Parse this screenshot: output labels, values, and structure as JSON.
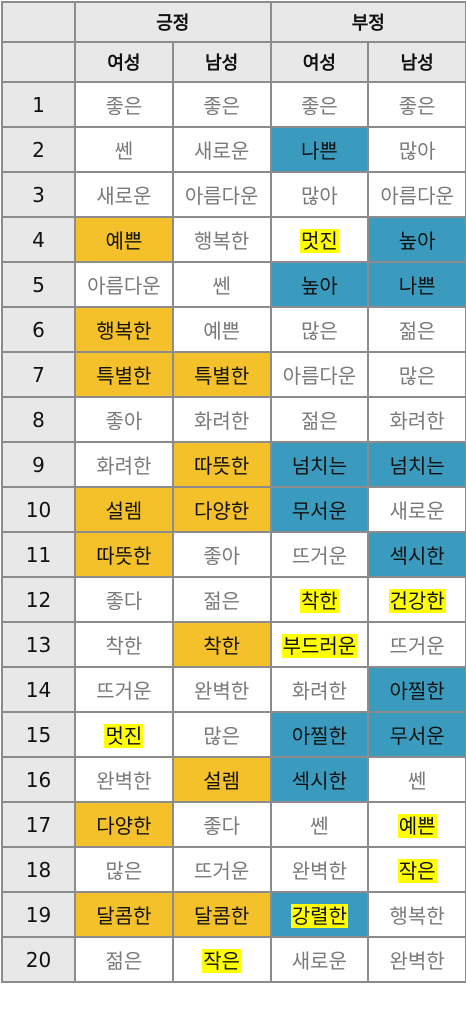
{
  "header": {
    "positive": "긍정",
    "negative": "부정",
    "female": "여성",
    "male": "남성"
  },
  "legend_colors": {
    "orange": "#f4c12a",
    "blue": "#3a9bbf",
    "yellow": "#ffff00"
  },
  "rows": [
    {
      "rank": "1",
      "cells": [
        {
          "text": "좋은",
          "style": ""
        },
        {
          "text": "좋은",
          "style": ""
        },
        {
          "text": "좋은",
          "style": ""
        },
        {
          "text": "좋은",
          "style": ""
        }
      ]
    },
    {
      "rank": "2",
      "cells": [
        {
          "text": "쎈",
          "style": ""
        },
        {
          "text": "새로운",
          "style": ""
        },
        {
          "text": "나쁜",
          "style": "blue"
        },
        {
          "text": "많아",
          "style": ""
        }
      ]
    },
    {
      "rank": "3",
      "cells": [
        {
          "text": "새로운",
          "style": ""
        },
        {
          "text": "아름다운",
          "style": ""
        },
        {
          "text": "많아",
          "style": ""
        },
        {
          "text": "아름다운",
          "style": ""
        }
      ]
    },
    {
      "rank": "4",
      "cells": [
        {
          "text": "예쁜",
          "style": "orange"
        },
        {
          "text": "행복한",
          "style": ""
        },
        {
          "text": "멋진",
          "style": "yellow"
        },
        {
          "text": "높아",
          "style": "blue"
        }
      ]
    },
    {
      "rank": "5",
      "cells": [
        {
          "text": "아름다운",
          "style": ""
        },
        {
          "text": "쎈",
          "style": ""
        },
        {
          "text": "높아",
          "style": "blue"
        },
        {
          "text": "나쁜",
          "style": "blue"
        }
      ]
    },
    {
      "rank": "6",
      "cells": [
        {
          "text": "행복한",
          "style": "orange"
        },
        {
          "text": "예쁜",
          "style": ""
        },
        {
          "text": "많은",
          "style": ""
        },
        {
          "text": "젊은",
          "style": ""
        }
      ]
    },
    {
      "rank": "7",
      "cells": [
        {
          "text": "특별한",
          "style": "orange"
        },
        {
          "text": "특별한",
          "style": "orange"
        },
        {
          "text": "아름다운",
          "style": ""
        },
        {
          "text": "많은",
          "style": ""
        }
      ]
    },
    {
      "rank": "8",
      "cells": [
        {
          "text": "좋아",
          "style": ""
        },
        {
          "text": "화려한",
          "style": ""
        },
        {
          "text": "젊은",
          "style": ""
        },
        {
          "text": "화려한",
          "style": ""
        }
      ]
    },
    {
      "rank": "9",
      "cells": [
        {
          "text": "화려한",
          "style": ""
        },
        {
          "text": "따뜻한",
          "style": "orange"
        },
        {
          "text": "넘치는",
          "style": "blue"
        },
        {
          "text": "넘치는",
          "style": "blue"
        }
      ]
    },
    {
      "rank": "10",
      "cells": [
        {
          "text": "설렘",
          "style": "orange"
        },
        {
          "text": "다양한",
          "style": "orange"
        },
        {
          "text": "무서운",
          "style": "blue"
        },
        {
          "text": "새로운",
          "style": ""
        }
      ]
    },
    {
      "rank": "11",
      "cells": [
        {
          "text": "따뜻한",
          "style": "orange"
        },
        {
          "text": "좋아",
          "style": ""
        },
        {
          "text": "뜨거운",
          "style": ""
        },
        {
          "text": "섹시한",
          "style": "blue"
        }
      ]
    },
    {
      "rank": "12",
      "cells": [
        {
          "text": "좋다",
          "style": ""
        },
        {
          "text": "젊은",
          "style": ""
        },
        {
          "text": "착한",
          "style": "yellow"
        },
        {
          "text": "건강한",
          "style": "yellow"
        }
      ]
    },
    {
      "rank": "13",
      "cells": [
        {
          "text": "착한",
          "style": ""
        },
        {
          "text": "착한",
          "style": "orange"
        },
        {
          "text": "부드러운",
          "style": "yellow"
        },
        {
          "text": "뜨거운",
          "style": ""
        }
      ]
    },
    {
      "rank": "14",
      "cells": [
        {
          "text": "뜨거운",
          "style": ""
        },
        {
          "text": "완벽한",
          "style": ""
        },
        {
          "text": "화려한",
          "style": ""
        },
        {
          "text": "아찔한",
          "style": "blue"
        }
      ]
    },
    {
      "rank": "15",
      "cells": [
        {
          "text": "멋진",
          "style": "yellow"
        },
        {
          "text": "많은",
          "style": ""
        },
        {
          "text": "아찔한",
          "style": "blue"
        },
        {
          "text": "무서운",
          "style": "blue"
        }
      ]
    },
    {
      "rank": "16",
      "cells": [
        {
          "text": "완벽한",
          "style": ""
        },
        {
          "text": "설렘",
          "style": "orange"
        },
        {
          "text": "섹시한",
          "style": "blue"
        },
        {
          "text": "쎈",
          "style": ""
        }
      ]
    },
    {
      "rank": "17",
      "cells": [
        {
          "text": "다양한",
          "style": "orange"
        },
        {
          "text": "좋다",
          "style": ""
        },
        {
          "text": "쎈",
          "style": ""
        },
        {
          "text": "예쁜",
          "style": "yellow"
        }
      ]
    },
    {
      "rank": "18",
      "cells": [
        {
          "text": "많은",
          "style": ""
        },
        {
          "text": "뜨거운",
          "style": ""
        },
        {
          "text": "완벽한",
          "style": ""
        },
        {
          "text": "작은",
          "style": "yellow"
        }
      ]
    },
    {
      "rank": "19",
      "cells": [
        {
          "text": "달콤한",
          "style": "orange"
        },
        {
          "text": "달콤한",
          "style": "orange"
        },
        {
          "text": "강렬한",
          "style": "blue-yellow"
        },
        {
          "text": "행복한",
          "style": ""
        }
      ]
    },
    {
      "rank": "20",
      "cells": [
        {
          "text": "젊은",
          "style": ""
        },
        {
          "text": "작은",
          "style": "yellow"
        },
        {
          "text": "새로운",
          "style": ""
        },
        {
          "text": "완벽한",
          "style": ""
        }
      ]
    }
  ]
}
